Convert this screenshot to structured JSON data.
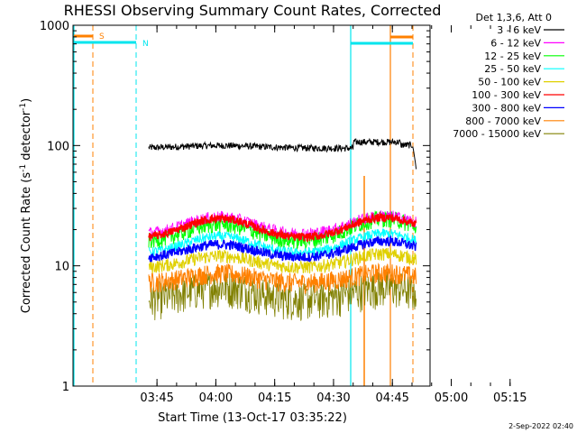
{
  "chart_data": {
    "type": "line",
    "title": "RHESSI Observing Summary Count Rates, Corrected",
    "xlabel": "Start Time (13-Oct-17 03:35:22)",
    "ylabel_main": "Corrected Count Rate (s",
    "ylabel_sup1": "-1",
    "ylabel_mid": " detector",
    "ylabel_sup2": "-1",
    "ylabel_end": ")",
    "yscale": "log",
    "ylim": [
      1,
      1000
    ],
    "xlim_minutes": [
      -21.4,
      69.6
    ],
    "x_ticks": [
      {
        "min": 0,
        "label": "03:45"
      },
      {
        "min": 15,
        "label": "04:00"
      },
      {
        "min": 30,
        "label": "04:15"
      },
      {
        "min": 45,
        "label": "04:30"
      },
      {
        "min": 60,
        "label": "04:45"
      },
      {
        "min": 75,
        "label": "05:00"
      },
      {
        "min": 90,
        "label": "05:15"
      }
    ],
    "y_ticks": [
      {
        "v": 1,
        "label": "1"
      },
      {
        "v": 10,
        "label": "10"
      },
      {
        "v": 100,
        "label": "100"
      },
      {
        "v": 1000,
        "label": "1000"
      }
    ],
    "legend_header": "Det 1,3,6, Att 0",
    "series": [
      {
        "name": "3 - 6 keV",
        "color": "#000000"
      },
      {
        "name": "6 - 12 keV",
        "color": "#ff00ff"
      },
      {
        "name": "12 - 25 keV",
        "color": "#00ff00"
      },
      {
        "name": "25 - 50 keV",
        "color": "#00ffff"
      },
      {
        "name": "50 - 100 keV",
        "color": "#e0d000"
      },
      {
        "name": "100 - 300 keV",
        "color": "#ff0000"
      },
      {
        "name": "300 - 800 keV",
        "color": "#0000ff"
      },
      {
        "name": "800 - 7000 keV",
        "color": "#ff8000"
      },
      {
        "name": "7000 - 15000 keV",
        "color": "#808000"
      }
    ],
    "annotations": [
      {
        "label": "S",
        "color": "#ff8000"
      },
      {
        "label": "N",
        "color": "#00e5ee"
      }
    ],
    "timestamp": "2-Sep-2022 02:40"
  }
}
